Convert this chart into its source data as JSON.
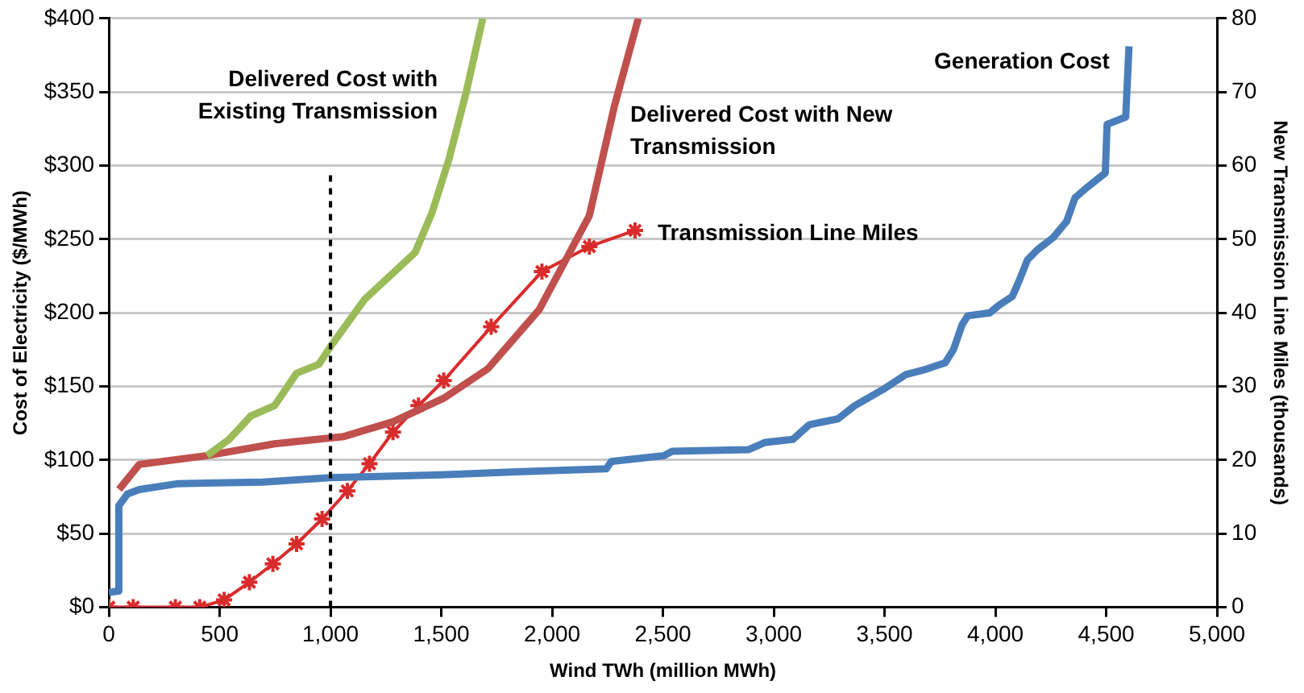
{
  "chart_data": {
    "type": "line",
    "xlabel": "Wind TWh (million MWh)",
    "ylabel": "Cost of Electricity ($/MWh)",
    "y2label": "New Transmission Line Miles (thousands)",
    "xlim": [
      0,
      5000
    ],
    "xticks": [
      0,
      500,
      {
        "value": 1000,
        "label": "1,000"
      },
      {
        "value": 1500,
        "label": "1,500"
      },
      {
        "value": 2000,
        "label": "2,000"
      },
      {
        "value": 2500,
        "label": "2,500"
      },
      {
        "value": 3000,
        "label": "3,000"
      },
      {
        "value": 3500,
        "label": "3,500"
      },
      {
        "value": 4000,
        "label": "4,000"
      },
      {
        "value": 4500,
        "label": "4,500"
      },
      {
        "value": 5000,
        "label": "5,000"
      }
    ],
    "ylim": [
      0,
      400
    ],
    "yticks": [
      {
        "value": 0,
        "label": "$0"
      },
      {
        "value": 50,
        "label": "$50"
      },
      {
        "value": 100,
        "label": "$100"
      },
      {
        "value": 150,
        "label": "$150"
      },
      {
        "value": 200,
        "label": "$200"
      },
      {
        "value": 250,
        "label": "$250"
      },
      {
        "value": 300,
        "label": "$300"
      },
      {
        "value": 350,
        "label": "$350"
      },
      {
        "value": 400,
        "label": "$400"
      }
    ],
    "y2lim": [
      0,
      80
    ],
    "y2ticks": [
      0,
      10,
      20,
      30,
      40,
      50,
      60,
      70,
      80
    ],
    "grid": "y",
    "legend": false,
    "ref_lines": [
      {
        "axis": "x",
        "value": 1000,
        "color": "#000000",
        "line_style": "dashed"
      }
    ],
    "series": [
      {
        "name": "Generation Cost",
        "color": "#4a7ebb",
        "marker": "none",
        "x": [
          0,
          40,
          45,
          84,
          137,
          313,
          695,
          1000,
          1500,
          1840,
          2244,
          2267,
          2504,
          2542,
          2885,
          2962,
          3086,
          3160,
          3290,
          3366,
          3494,
          3595,
          3672,
          3773,
          3811,
          3850,
          3875,
          3975,
          4015,
          4076,
          4105,
          4145,
          4191,
          4260,
          4321,
          4359,
          4412,
          4496,
          4504,
          4588,
          4603
        ],
        "values": [
          10,
          11,
          69,
          77,
          80,
          84,
          85,
          88,
          90,
          92,
          94,
          99,
          103,
          106,
          107,
          112,
          114,
          124,
          128,
          137,
          148,
          158,
          161,
          166,
          175,
          192,
          198,
          200,
          205,
          211,
          221,
          236,
          243,
          251,
          262,
          278,
          285,
          295,
          328,
          333,
          381
        ]
      },
      {
        "name": "Delivered Cost with Existing Transmission",
        "color": "#9bbb59",
        "marker": "none",
        "x": [
          443,
          542,
          641,
          748,
          847,
          947,
          1000,
          1153,
          1382,
          1458,
          1534,
          1611,
          1687
        ],
        "values": [
          103,
          114,
          130,
          137,
          159,
          165,
          177,
          209,
          241,
          268,
          304,
          349,
          400
        ]
      },
      {
        "name": "Delivered Cost with New Transmission",
        "color": "#c0504d",
        "marker": "none",
        "x": [
          46,
          137,
          443,
          748,
          1061,
          1282,
          1511,
          1710,
          1941,
          2168,
          2282,
          2389
        ],
        "values": [
          80,
          97,
          103,
          111,
          116,
          126,
          142,
          162,
          202,
          266,
          341,
          400
        ]
      },
      {
        "name": "Transmission Line Miles",
        "color": "#d92b2b",
        "marker": "cross",
        "axis": "y2",
        "x": [
          0,
          110,
          300,
          410,
          520,
          634,
          740,
          847,
          962,
          1076,
          1176,
          1282,
          1397,
          1511,
          1725,
          1954,
          2168,
          2374
        ],
        "values": [
          0,
          0,
          0,
          0,
          1,
          3.4,
          5.9,
          8.6,
          12,
          15.8,
          19.5,
          23.8,
          27.4,
          30.8,
          38.1,
          45.6,
          49,
          51.2
        ]
      }
    ]
  }
}
